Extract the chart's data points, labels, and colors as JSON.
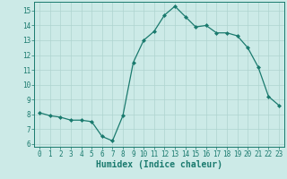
{
  "x": [
    0,
    1,
    2,
    3,
    4,
    5,
    6,
    7,
    8,
    9,
    10,
    11,
    12,
    13,
    14,
    15,
    16,
    17,
    18,
    19,
    20,
    21,
    22,
    23
  ],
  "y": [
    8.1,
    7.9,
    7.8,
    7.6,
    7.6,
    7.5,
    6.5,
    6.2,
    7.9,
    11.5,
    13.0,
    13.6,
    14.7,
    15.3,
    14.6,
    13.9,
    14.0,
    13.5,
    13.5,
    13.3,
    12.5,
    11.2,
    9.2,
    8.6
  ],
  "line_color": "#1a7a6e",
  "marker": "D",
  "marker_size": 2.0,
  "linewidth": 0.9,
  "xlabel": "Humidex (Indice chaleur)",
  "xlabel_fontsize": 7,
  "ylim": [
    5.8,
    15.6
  ],
  "xlim": [
    -0.5,
    23.5
  ],
  "yticks": [
    6,
    7,
    8,
    9,
    10,
    11,
    12,
    13,
    14,
    15
  ],
  "xticks": [
    0,
    1,
    2,
    3,
    4,
    5,
    6,
    7,
    8,
    9,
    10,
    11,
    12,
    13,
    14,
    15,
    16,
    17,
    18,
    19,
    20,
    21,
    22,
    23
  ],
  "background_color": "#cceae7",
  "grid_color": "#aed4d0",
  "tick_color": "#1a7a6e",
  "tick_fontsize": 5.5,
  "axes_color": "#1a7a6e"
}
